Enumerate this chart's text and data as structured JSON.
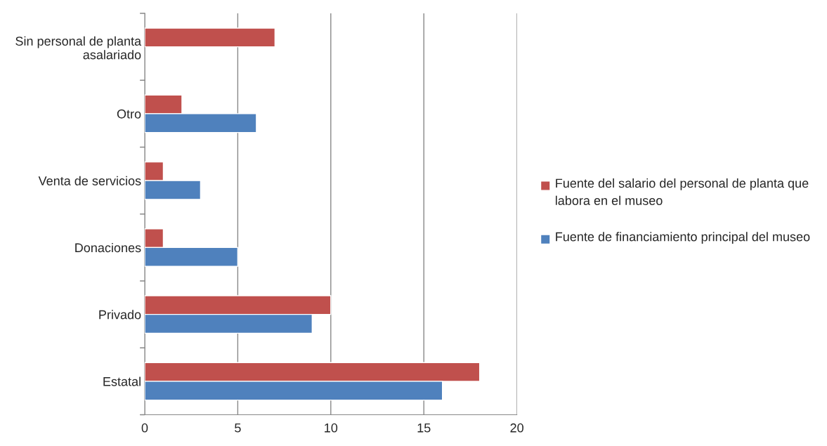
{
  "chart_data": {
    "type": "bar",
    "orientation": "horizontal",
    "categories": [
      "Sin personal de planta asalariado",
      "Otro",
      "Venta de servicios",
      "Donaciones",
      "Privado",
      "Estatal"
    ],
    "series": [
      {
        "name": "Fuente del salario del personal de planta que labora en el museo",
        "color": "#c0504d",
        "values": [
          7,
          2,
          1,
          1,
          10,
          18
        ]
      },
      {
        "name": "Fuente de financiamiento principal del museo",
        "color": "#4f81bd",
        "values": [
          null,
          6,
          3,
          5,
          9,
          16
        ]
      }
    ],
    "xlim": [
      0,
      20
    ],
    "xticks": [
      0,
      5,
      10,
      15,
      20
    ],
    "grid": "x",
    "legend": "right"
  }
}
